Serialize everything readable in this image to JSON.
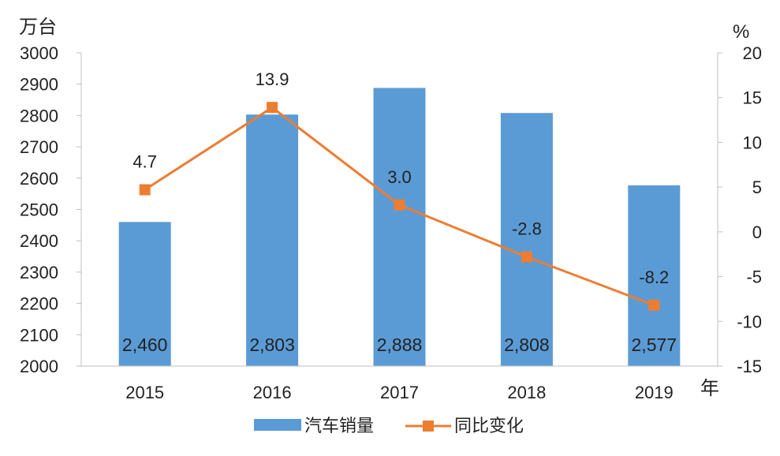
{
  "chart_data": {
    "type": "bar",
    "categories": [
      "2015",
      "2016",
      "2017",
      "2018",
      "2019"
    ],
    "series": [
      {
        "name": "汽车销量",
        "type": "bar",
        "axis": "left",
        "values": [
          2460,
          2803,
          2888,
          2808,
          2577
        ],
        "data_labels": [
          "2,460",
          "2,803",
          "2,888",
          "2,808",
          "2,577"
        ],
        "color": "#5b9bd5"
      },
      {
        "name": "同比变化",
        "type": "line",
        "axis": "right",
        "values": [
          4.7,
          13.9,
          3.0,
          -2.8,
          -8.2
        ],
        "data_labels": [
          "4.7",
          "13.9",
          "3.0",
          "-2.8",
          "-8.2"
        ],
        "color": "#ed7d31"
      }
    ],
    "y_left": {
      "unit": "万台",
      "ylim": [
        2000,
        3000
      ],
      "ticks": [
        "3000",
        "2900",
        "2800",
        "2700",
        "2600",
        "2500",
        "2400",
        "2300",
        "2200",
        "2100",
        "2000"
      ]
    },
    "y_right": {
      "unit": "%",
      "ylim": [
        -15,
        20
      ],
      "ticks": [
        "20",
        "15",
        "10",
        "5",
        "0",
        "-5",
        "-10",
        "-15"
      ]
    },
    "x_unit": "年",
    "legend": {
      "position": "bottom",
      "entries": [
        "汽车销量",
        "同比变化"
      ]
    },
    "grid": false
  }
}
